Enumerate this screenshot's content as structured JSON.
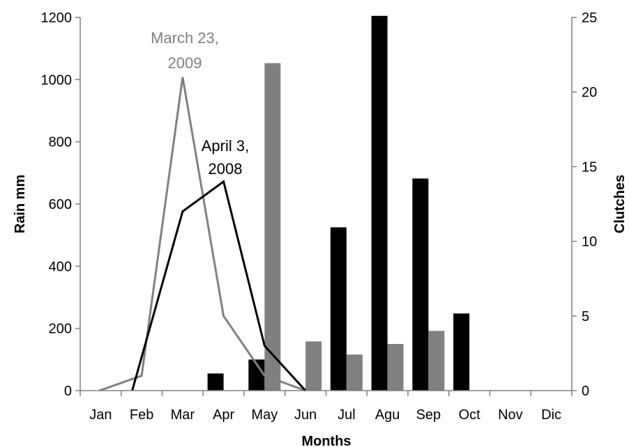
{
  "chart_data": {
    "type": "bar",
    "title": "",
    "xlabel": "Months",
    "ylabel": "Rain mm",
    "y2label": "Clutches",
    "categories": [
      "Jan",
      "Feb",
      "Mar",
      "Apr",
      "May",
      "Jun",
      "Jul",
      "Agu",
      "Sep",
      "Oct",
      "Nov",
      "Dic"
    ],
    "ylim": [
      0,
      1200
    ],
    "yticks": [
      0,
      200,
      400,
      600,
      800,
      1000,
      1200
    ],
    "y2lim": [
      0,
      25
    ],
    "y2ticks": [
      0,
      5,
      10,
      15,
      20,
      25
    ],
    "grid": false,
    "legend": "none",
    "bar_series": [
      {
        "values": [
          0,
          0,
          0,
          55,
          100,
          0,
          525,
          1205,
          682,
          248,
          0,
          0
        ],
        "axis": "left",
        "color": "#000000"
      },
      {
        "values": [
          0,
          0,
          0,
          0,
          1053,
          158,
          116,
          150,
          192,
          0,
          0,
          0
        ],
        "axis": "left",
        "color": "#808080"
      }
    ],
    "line_series": [
      {
        "values": [
          0,
          1,
          21,
          5,
          1,
          0
        ],
        "axis": "right",
        "color": "#808080",
        "annotation": "March 23, 2009"
      },
      {
        "values": [
          null,
          0,
          12,
          14,
          3,
          0
        ],
        "axis": "right",
        "color": "#000000",
        "annotation": "April 3, 2008"
      }
    ],
    "annotations": [
      {
        "lines": [
          "March 23,",
          "2009"
        ],
        "color": "#808080"
      },
      {
        "lines": [
          "April 3,",
          "2008"
        ],
        "color": "#000000"
      }
    ]
  }
}
